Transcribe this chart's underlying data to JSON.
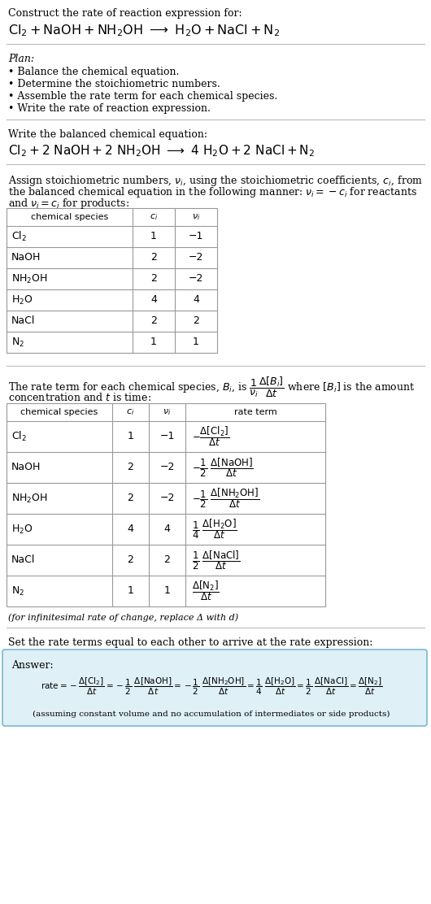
{
  "bg_color": "#ffffff",
  "text_color": "#000000",
  "title_line1": "Construct the rate of reaction expression for:",
  "plan_header": "Plan:",
  "plan_items": [
    "• Balance the chemical equation.",
    "• Determine the stoichiometric numbers.",
    "• Assemble the rate term for each chemical species.",
    "• Write the rate of reaction expression."
  ],
  "balanced_header": "Write the balanced chemical equation:",
  "table1_species": [
    "$\\mathrm{Cl_2}$",
    "NaOH",
    "$\\mathrm{NH_2OH}$",
    "$\\mathrm{H_2O}$",
    "NaCl",
    "$\\mathrm{N_2}$"
  ],
  "table1_ci": [
    "1",
    "2",
    "2",
    "4",
    "2",
    "1"
  ],
  "table1_nu": [
    "−1",
    "−2",
    "−2",
    "4",
    "2",
    "1"
  ],
  "table2_species": [
    "$\\mathrm{Cl_2}$",
    "NaOH",
    "$\\mathrm{NH_2OH}$",
    "$\\mathrm{H_2O}$",
    "NaCl",
    "$\\mathrm{N_2}$"
  ],
  "table2_ci": [
    "1",
    "2",
    "2",
    "4",
    "2",
    "1"
  ],
  "table2_nu": [
    "−1",
    "−2",
    "−2",
    "4",
    "2",
    "1"
  ],
  "infinitesimal_note": "(for infinitesimal rate of change, replace Δ with d)",
  "set_equal_text": "Set the rate terms equal to each other to arrive at the rate expression:",
  "answer_box_color": "#dff0f7",
  "answer_border_color": "#7ab8d0",
  "answer_label": "Answer:",
  "footnote": "(assuming constant volume and no accumulation of intermediates or side products)",
  "fig_width": 5.3,
  "fig_height": 11.12,
  "dpi": 100
}
